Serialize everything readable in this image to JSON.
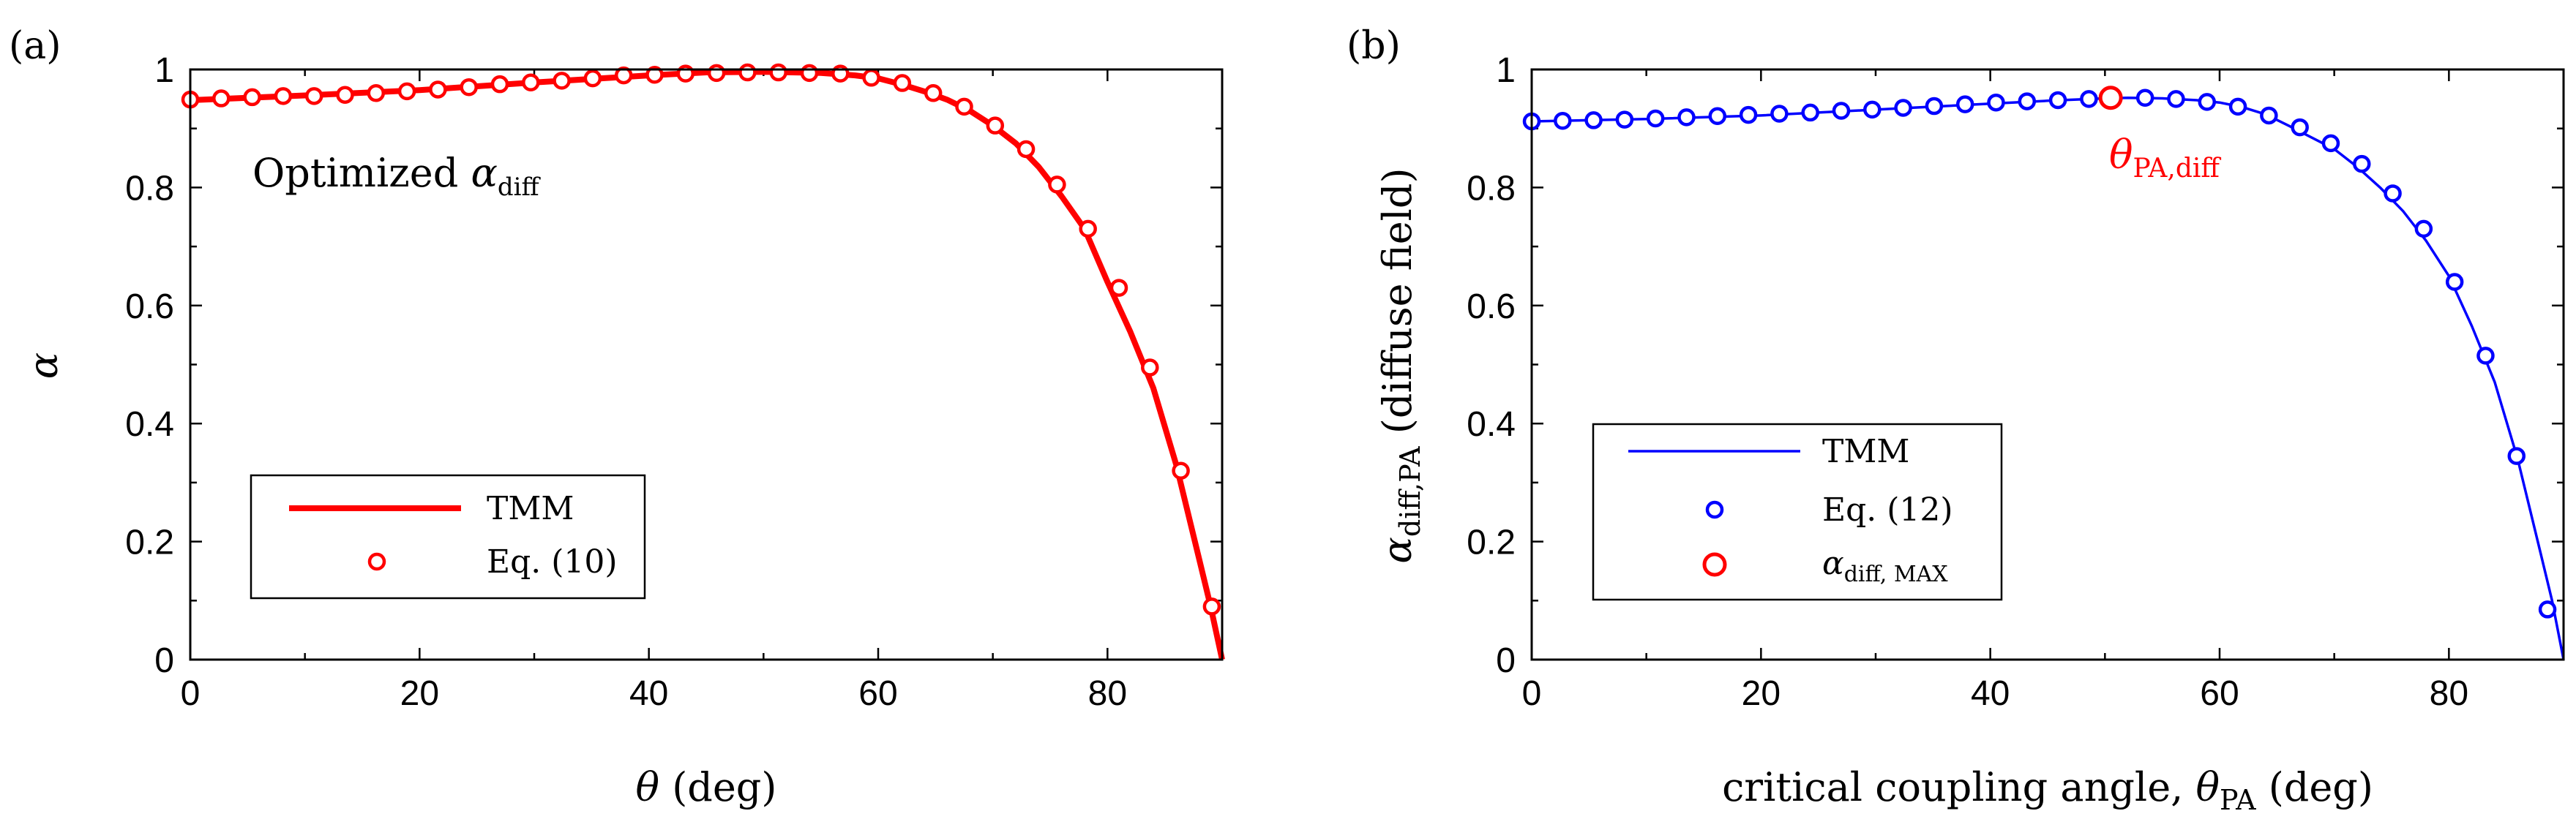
{
  "chart_data": [
    {
      "panel_label": "(a)",
      "type": "line",
      "xlabel_symbol": "θ",
      "xlabel_unit": " (deg)",
      "ylabel": "α",
      "xlim": [
        0,
        90
      ],
      "ylim": [
        0,
        1
      ],
      "xticks": [
        "0",
        "20",
        "40",
        "60",
        "80"
      ],
      "yticks": [
        "0",
        "0.2",
        "0.4",
        "0.6",
        "0.8",
        "1"
      ],
      "annotation": {
        "text": "Optimized ",
        "symbol": "α",
        "subscript": "diff"
      },
      "series": [
        {
          "name": "TMM",
          "kind": "line",
          "color": "#ff0000",
          "x": [
            0,
            10,
            20,
            30,
            40,
            45,
            50,
            55,
            58,
            60,
            62,
            64,
            66,
            68,
            70,
            72,
            74,
            76,
            78,
            80,
            82,
            84,
            86,
            88,
            89,
            90
          ],
          "y": [
            0.948,
            0.956,
            0.965,
            0.978,
            0.99,
            0.995,
            0.996,
            0.994,
            0.99,
            0.985,
            0.975,
            0.963,
            0.949,
            0.93,
            0.905,
            0.875,
            0.835,
            0.785,
            0.73,
            0.64,
            0.555,
            0.46,
            0.33,
            0.17,
            0.09,
            0.0
          ]
        },
        {
          "name": "Eq. (10)",
          "kind": "markers",
          "color": "#ff0000",
          "x": [
            0,
            2.7,
            5.4,
            8.1,
            10.8,
            13.5,
            16.2,
            18.9,
            21.6,
            24.3,
            27,
            29.7,
            32.4,
            35.1,
            37.8,
            40.5,
            43.2,
            45.9,
            48.6,
            51.3,
            54,
            56.7,
            59.4,
            62.1,
            64.8,
            67.5,
            70.2,
            72.9,
            75.6,
            78.3,
            81,
            83.7,
            86.4,
            89.1
          ],
          "y": [
            0.949,
            0.951,
            0.953,
            0.955,
            0.955,
            0.957,
            0.96,
            0.963,
            0.966,
            0.97,
            0.975,
            0.978,
            0.981,
            0.985,
            0.99,
            0.991,
            0.993,
            0.994,
            0.995,
            0.995,
            0.994,
            0.993,
            0.986,
            0.977,
            0.96,
            0.937,
            0.905,
            0.865,
            0.805,
            0.73,
            0.63,
            0.495,
            0.32,
            0.09
          ]
        }
      ],
      "legend": [
        {
          "label": "TMM",
          "kind": "line",
          "color": "#ff0000"
        },
        {
          "label": "Eq. (10)",
          "kind": "marker",
          "color": "#ff0000"
        }
      ]
    },
    {
      "panel_label": "(b)",
      "type": "line",
      "xlabel_text": "critical coupling angle, ",
      "xlabel_symbol": "θ",
      "xlabel_subscript": "PA",
      "xlabel_unit": " (deg)",
      "ylabel_symbol": "α",
      "ylabel_subscript": "diff,PA",
      "ylabel_suffix": " (diffuse field)",
      "xlim": [
        0,
        90
      ],
      "ylim": [
        0,
        1
      ],
      "xticks": [
        "0",
        "20",
        "40",
        "60",
        "80"
      ],
      "yticks": [
        "0",
        "0.2",
        "0.4",
        "0.6",
        "0.8",
        "1"
      ],
      "annotation": {
        "symbol": "θ",
        "subscript": "PA,diff",
        "color": "#ff0000"
      },
      "series": [
        {
          "name": "TMM",
          "kind": "line",
          "color": "#0000ff",
          "x": [
            0,
            10,
            20,
            30,
            40,
            45,
            50,
            52,
            55,
            58,
            60,
            62,
            64,
            66,
            68,
            70,
            72,
            74,
            76,
            78,
            80,
            82,
            84,
            86,
            88,
            89,
            90
          ],
          "y": [
            0.912,
            0.916,
            0.922,
            0.932,
            0.942,
            0.947,
            0.951,
            0.952,
            0.951,
            0.948,
            0.944,
            0.936,
            0.924,
            0.905,
            0.885,
            0.865,
            0.835,
            0.8,
            0.76,
            0.71,
            0.65,
            0.565,
            0.47,
            0.34,
            0.18,
            0.1,
            0.0
          ]
        },
        {
          "name": "Eq. (12)",
          "kind": "markers",
          "color": "#0000ff",
          "x": [
            0,
            2.7,
            5.4,
            8.1,
            10.8,
            13.5,
            16.2,
            18.9,
            21.6,
            24.3,
            27,
            29.7,
            32.4,
            35.1,
            37.8,
            40.5,
            43.2,
            45.9,
            48.6,
            53.5,
            56.2,
            58.9,
            61.6,
            64.3,
            67,
            69.7,
            72.4,
            75.1,
            77.8,
            80.5,
            83.2,
            85.9,
            88.6
          ],
          "y": [
            0.912,
            0.913,
            0.914,
            0.915,
            0.917,
            0.919,
            0.921,
            0.923,
            0.925,
            0.927,
            0.93,
            0.932,
            0.935,
            0.938,
            0.941,
            0.944,
            0.946,
            0.948,
            0.95,
            0.952,
            0.95,
            0.945,
            0.937,
            0.922,
            0.902,
            0.875,
            0.84,
            0.79,
            0.73,
            0.64,
            0.515,
            0.345,
            0.085
          ]
        },
        {
          "name": "α_diff,MAX",
          "kind": "markers",
          "color": "#ff0000",
          "x": [
            50.5
          ],
          "y": [
            0.952
          ]
        }
      ],
      "legend": [
        {
          "label": "TMM",
          "kind": "line",
          "color": "#0000ff"
        },
        {
          "label": "Eq. (12)",
          "kind": "marker",
          "color": "#0000ff"
        },
        {
          "symbol": "α",
          "subscript": "diff, MAX",
          "kind": "marker-large",
          "color": "#ff0000"
        }
      ]
    }
  ]
}
